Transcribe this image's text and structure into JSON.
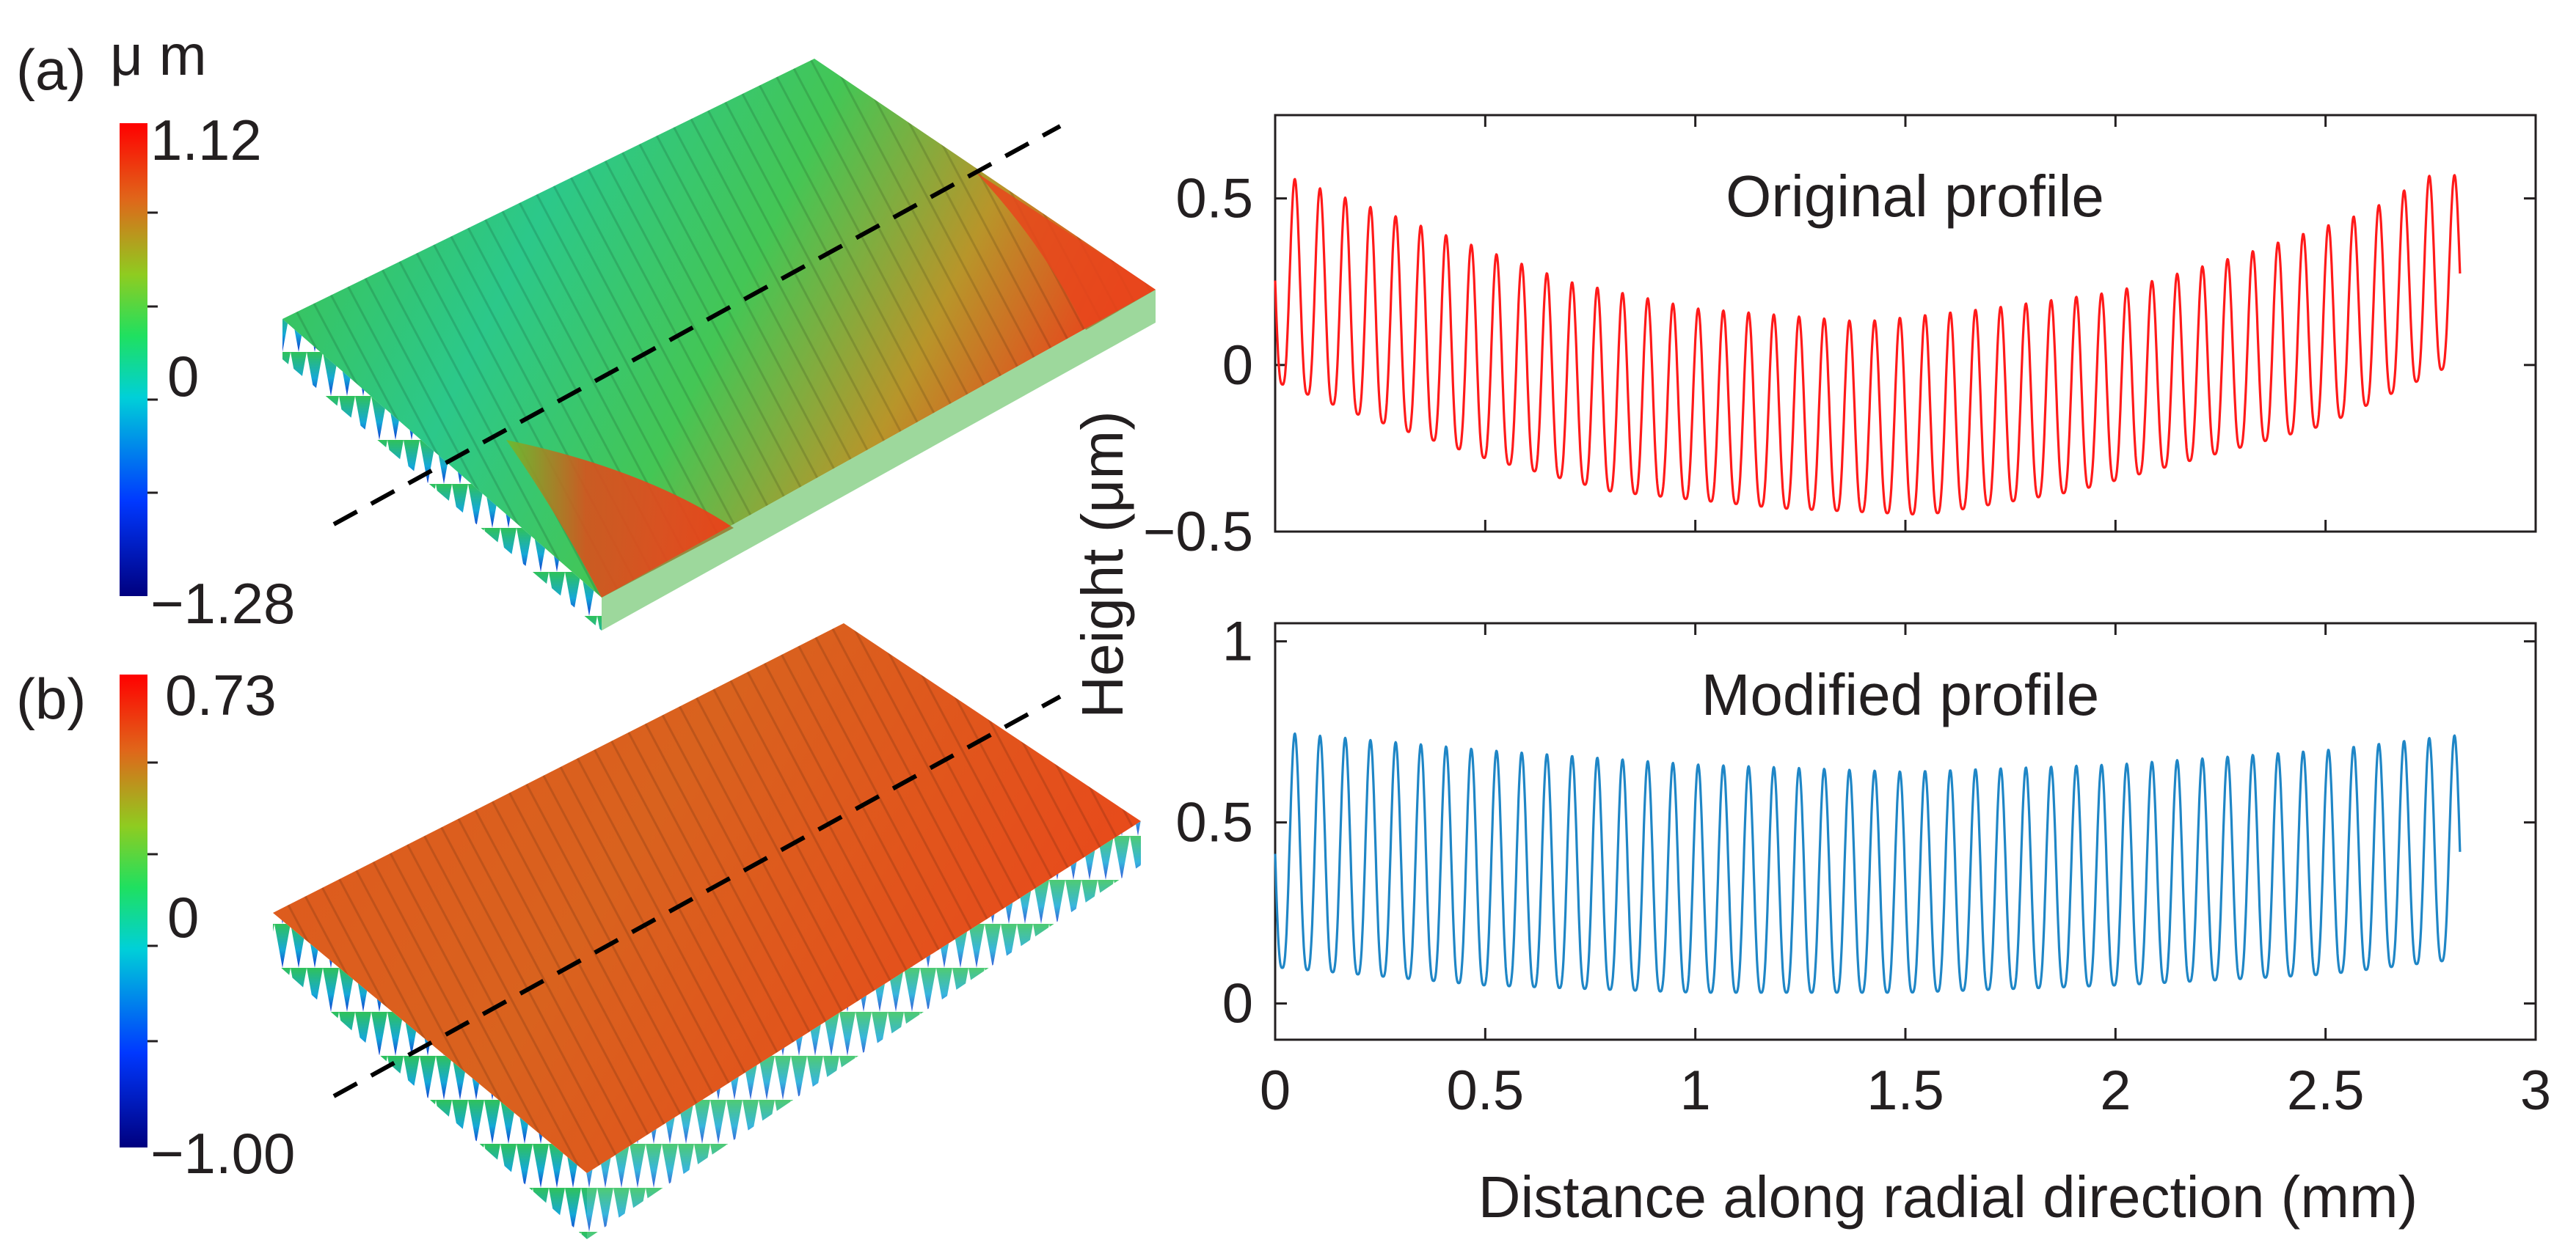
{
  "panel_a": {
    "label": "(a)",
    "unit": "μ m",
    "cb_max": "1.12",
    "cb_mid": "0",
    "cb_min": "−1.28"
  },
  "panel_b": {
    "label": "(b)",
    "cb_max": "0.73",
    "cb_mid": "0",
    "cb_min": "−1.00"
  },
  "colors": {
    "original": "#ff1a1a",
    "modified": "#1f86c6",
    "axis": "#231f20"
  },
  "chart_data": [
    {
      "type": "line",
      "title": "Original profile",
      "xlabel": "Distance along radial direction (mm)",
      "ylabel": "Height (μm)",
      "xlim": [
        0,
        3
      ],
      "ylim": [
        -0.5,
        0.75
      ],
      "yticks": [
        -0.5,
        0,
        0.5
      ],
      "ytick_labels": [
        "−0.5",
        "0",
        "0.5"
      ],
      "series": [
        {
          "name": "Original profile",
          "color": "#ff1a1a",
          "period_mm": 0.06,
          "x_start": 0.0,
          "x_end": 2.82,
          "upper_envelope": [
            [
              0,
              0.58
            ],
            [
              0.3,
              0.44
            ],
            [
              0.7,
              0.25
            ],
            [
              1.0,
              0.17
            ],
            [
              1.4,
              0.13
            ],
            [
              1.7,
              0.17
            ],
            [
              2.0,
              0.22
            ],
            [
              2.3,
              0.33
            ],
            [
              2.6,
              0.46
            ],
            [
              2.75,
              0.57
            ]
          ],
          "lower_envelope": [
            [
              0,
              -0.05
            ],
            [
              0.2,
              -0.15
            ],
            [
              0.5,
              -0.28
            ],
            [
              0.8,
              -0.38
            ],
            [
              1.2,
              -0.43
            ],
            [
              1.55,
              -0.45
            ],
            [
              1.9,
              -0.38
            ],
            [
              2.2,
              -0.28
            ],
            [
              2.5,
              -0.18
            ],
            [
              2.8,
              0.0
            ]
          ]
        }
      ]
    },
    {
      "type": "line",
      "title": "Modified profile",
      "xlabel": "Distance along radial direction (mm)",
      "ylabel": "Height (μm)",
      "xlim": [
        0,
        3
      ],
      "ylim": [
        -0.1,
        1.05
      ],
      "yticks": [
        0,
        0.5,
        1
      ],
      "ytick_labels": [
        "0",
        "0.5",
        "1"
      ],
      "xticks": [
        0,
        0.5,
        1,
        1.5,
        2,
        2.5,
        3
      ],
      "xtick_labels": [
        "0",
        "0.5",
        "1",
        "1.5",
        "2",
        "2.5",
        "3"
      ],
      "series": [
        {
          "name": "Modified profile",
          "color": "#1f86c6",
          "period_mm": 0.06,
          "x_start": 0.0,
          "x_end": 2.82,
          "upper_envelope": [
            [
              0,
              0.75
            ],
            [
              0.5,
              0.7
            ],
            [
              1.0,
              0.66
            ],
            [
              1.5,
              0.64
            ],
            [
              2.0,
              0.66
            ],
            [
              2.5,
              0.7
            ],
            [
              2.8,
              0.74
            ]
          ],
          "lower_envelope": [
            [
              0,
              0.1
            ],
            [
              0.5,
              0.05
            ],
            [
              1.0,
              0.03
            ],
            [
              1.5,
              0.03
            ],
            [
              2.0,
              0.05
            ],
            [
              2.5,
              0.08
            ],
            [
              2.8,
              0.12
            ]
          ]
        }
      ]
    }
  ]
}
